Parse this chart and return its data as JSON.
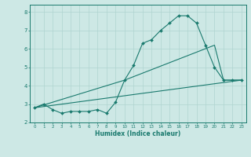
{
  "xlabel": "Humidex (Indice chaleur)",
  "bg_color": "#cde8e5",
  "grid_color": "#b0d4d0",
  "line_color": "#1a7a6e",
  "xlim": [
    -0.5,
    23.5
  ],
  "ylim": [
    2.0,
    8.4
  ],
  "yticks": [
    2,
    3,
    4,
    5,
    6,
    7,
    8
  ],
  "xticks": [
    0,
    1,
    2,
    3,
    4,
    5,
    6,
    7,
    8,
    9,
    10,
    11,
    12,
    13,
    14,
    15,
    16,
    17,
    18,
    19,
    20,
    21,
    22,
    23
  ],
  "line1_x": [
    0,
    1,
    2,
    3,
    4,
    5,
    6,
    7,
    8,
    9,
    10,
    11,
    12,
    13,
    14,
    15,
    16,
    17,
    18,
    19,
    20,
    21,
    22,
    23
  ],
  "line1_y": [
    2.8,
    3.0,
    2.7,
    2.5,
    2.6,
    2.6,
    2.6,
    2.7,
    2.5,
    3.1,
    4.3,
    5.1,
    6.3,
    6.5,
    7.0,
    7.4,
    7.8,
    7.8,
    7.4,
    6.2,
    5.0,
    4.3,
    4.3,
    4.3
  ],
  "line2_x": [
    0,
    10,
    20,
    21,
    22,
    23
  ],
  "line2_y": [
    2.8,
    4.3,
    6.2,
    4.3,
    4.3,
    4.3
  ],
  "line3_x": [
    0,
    23
  ],
  "line3_y": [
    2.8,
    4.3
  ]
}
